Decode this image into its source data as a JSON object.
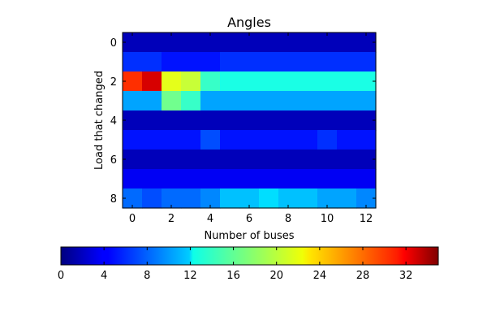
{
  "chart_data": {
    "type": "heatmap",
    "title": "Angles",
    "xlabel": "Number of buses",
    "ylabel": "Load that changed",
    "x_ticks": [
      "0",
      "2",
      "4",
      "6",
      "8",
      "10",
      "12"
    ],
    "y_ticks": [
      "0",
      "2",
      "4",
      "6",
      "8"
    ],
    "x_range": [
      -0.5,
      12.5
    ],
    "y_range": [
      -0.5,
      8.5
    ],
    "y_inverted": true,
    "colormap": "jet",
    "colorbar": {
      "orientation": "horizontal",
      "placement": "bottom",
      "range": [
        0,
        35
      ],
      "ticks": [
        "0",
        "4",
        "8",
        "12",
        "16",
        "20",
        "24",
        "28",
        "32"
      ]
    },
    "rows": 9,
    "cols": 13,
    "values": [
      [
        2,
        2,
        2,
        2,
        2,
        2,
        2,
        2,
        2,
        2,
        2,
        2,
        2
      ],
      [
        6,
        6,
        5,
        5,
        5,
        6,
        6,
        6,
        6,
        6,
        6,
        6,
        6
      ],
      [
        29,
        32,
        21,
        20,
        15,
        14,
        14,
        14,
        14,
        14,
        14,
        14,
        14
      ],
      [
        10,
        10,
        17,
        15,
        10,
        10,
        10,
        10,
        10,
        10,
        10,
        10,
        10
      ],
      [
        2,
        2,
        2,
        2,
        2,
        2,
        2,
        2,
        2,
        2,
        2,
        2,
        2
      ],
      [
        5,
        5,
        5,
        5,
        7,
        5,
        5,
        5,
        5,
        5,
        6,
        5,
        5
      ],
      [
        2,
        2,
        2,
        2,
        2,
        2,
        2,
        2,
        2,
        2,
        2,
        2,
        2
      ],
      [
        4,
        4,
        4,
        4,
        4,
        4,
        4,
        4,
        4,
        4,
        4,
        4,
        4
      ],
      [
        8,
        7,
        8,
        8,
        9,
        11,
        11,
        12,
        11,
        11,
        10,
        10,
        9
      ]
    ]
  }
}
